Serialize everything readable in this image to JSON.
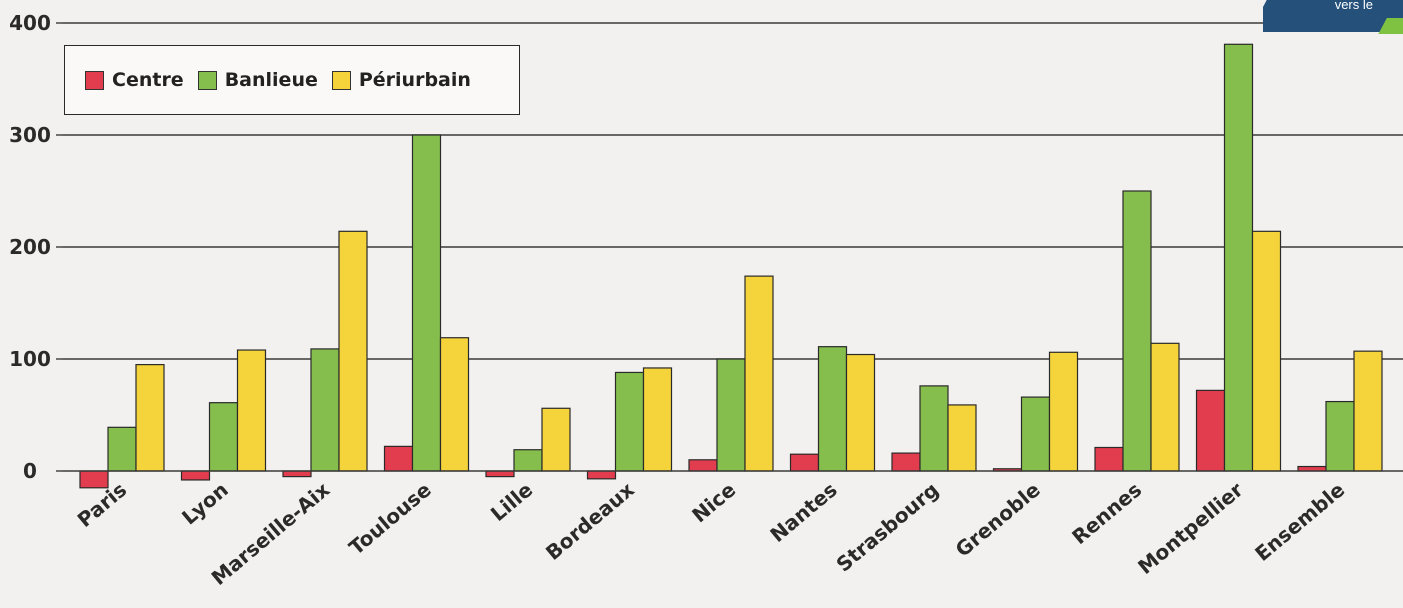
{
  "page": {
    "corner_label": "vers le"
  },
  "chart_data": {
    "type": "bar",
    "categories": [
      "Paris",
      "Lyon",
      "Marseille-Aix",
      "Toulouse",
      "Lille",
      "Bordeaux",
      "Nice",
      "Nantes",
      "Strasbourg",
      "Grenoble",
      "Rennes",
      "Montpellier",
      "Ensemble"
    ],
    "series": [
      {
        "name": "Centre",
        "color": "#e23d4f",
        "values": [
          -15,
          -8,
          -5,
          22,
          -5,
          -7,
          10,
          15,
          16,
          2,
          21,
          72,
          4
        ]
      },
      {
        "name": "Banlieue",
        "color": "#85be4c",
        "values": [
          39,
          61,
          109,
          300,
          19,
          88,
          100,
          111,
          76,
          66,
          250,
          381,
          62
        ]
      },
      {
        "name": "Périurbain",
        "color": "#f5d33a",
        "values": [
          95,
          108,
          214,
          119,
          56,
          92,
          174,
          104,
          59,
          106,
          114,
          214,
          107
        ]
      }
    ],
    "yticks": [
      0,
      100,
      200,
      300,
      400
    ],
    "ylim": [
      -30,
      400
    ],
    "grid": true,
    "legend_position": "top-left",
    "title": "",
    "xlabel": "",
    "ylabel": ""
  }
}
